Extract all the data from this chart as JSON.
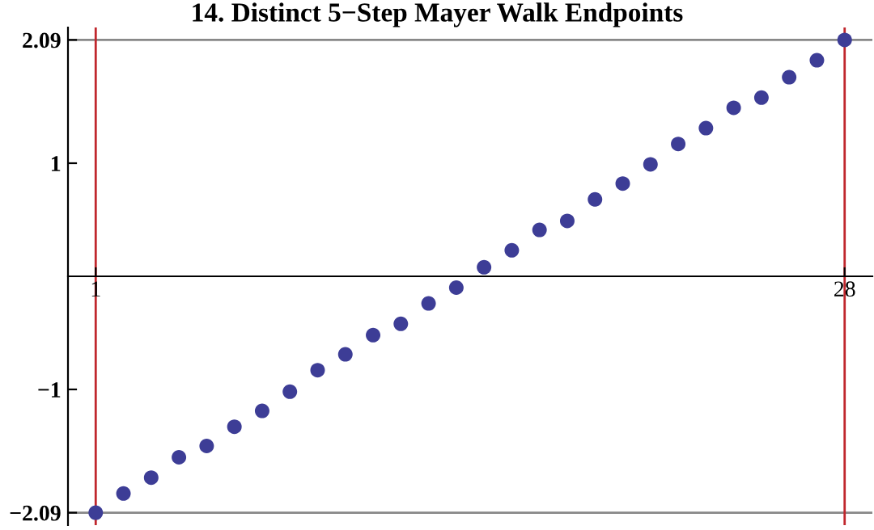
{
  "chart_data": {
    "type": "scatter",
    "title": "14. Distinct 5−Step Mayer Walk Endpoints",
    "x": [
      1,
      2,
      3,
      4,
      5,
      6,
      7,
      8,
      9,
      10,
      11,
      12,
      13,
      14,
      15,
      16,
      17,
      18,
      19,
      20,
      21,
      22,
      23,
      24,
      25,
      26,
      27,
      28
    ],
    "series": [
      {
        "color": "#3d3d96",
        "values": [
          -2.09,
          -1.92,
          -1.78,
          -1.6,
          -1.5,
          -1.33,
          -1.19,
          -1.02,
          -0.83,
          -0.69,
          -0.52,
          -0.42,
          -0.24,
          -0.1,
          0.08,
          0.23,
          0.41,
          0.49,
          0.68,
          0.82,
          0.99,
          1.17,
          1.31,
          1.49,
          1.58,
          1.76,
          1.91,
          2.09
        ]
      }
    ],
    "marker": "circle",
    "grid": false,
    "xlim": [
      0,
      29
    ],
    "ylim": [
      -2.2,
      2.2
    ],
    "xticks": [
      1,
      28
    ],
    "yticks": [
      -2.09,
      -1,
      1,
      2.09
    ],
    "ref_lines": [
      {
        "axis": "y",
        "value": 2.09,
        "color": "#888888"
      },
      {
        "axis": "y",
        "value": -2.09,
        "color": "#888888"
      },
      {
        "axis": "x",
        "value": 1,
        "color": "#c0272d"
      },
      {
        "axis": "x",
        "value": 28,
        "color": "#c0272d"
      }
    ]
  }
}
